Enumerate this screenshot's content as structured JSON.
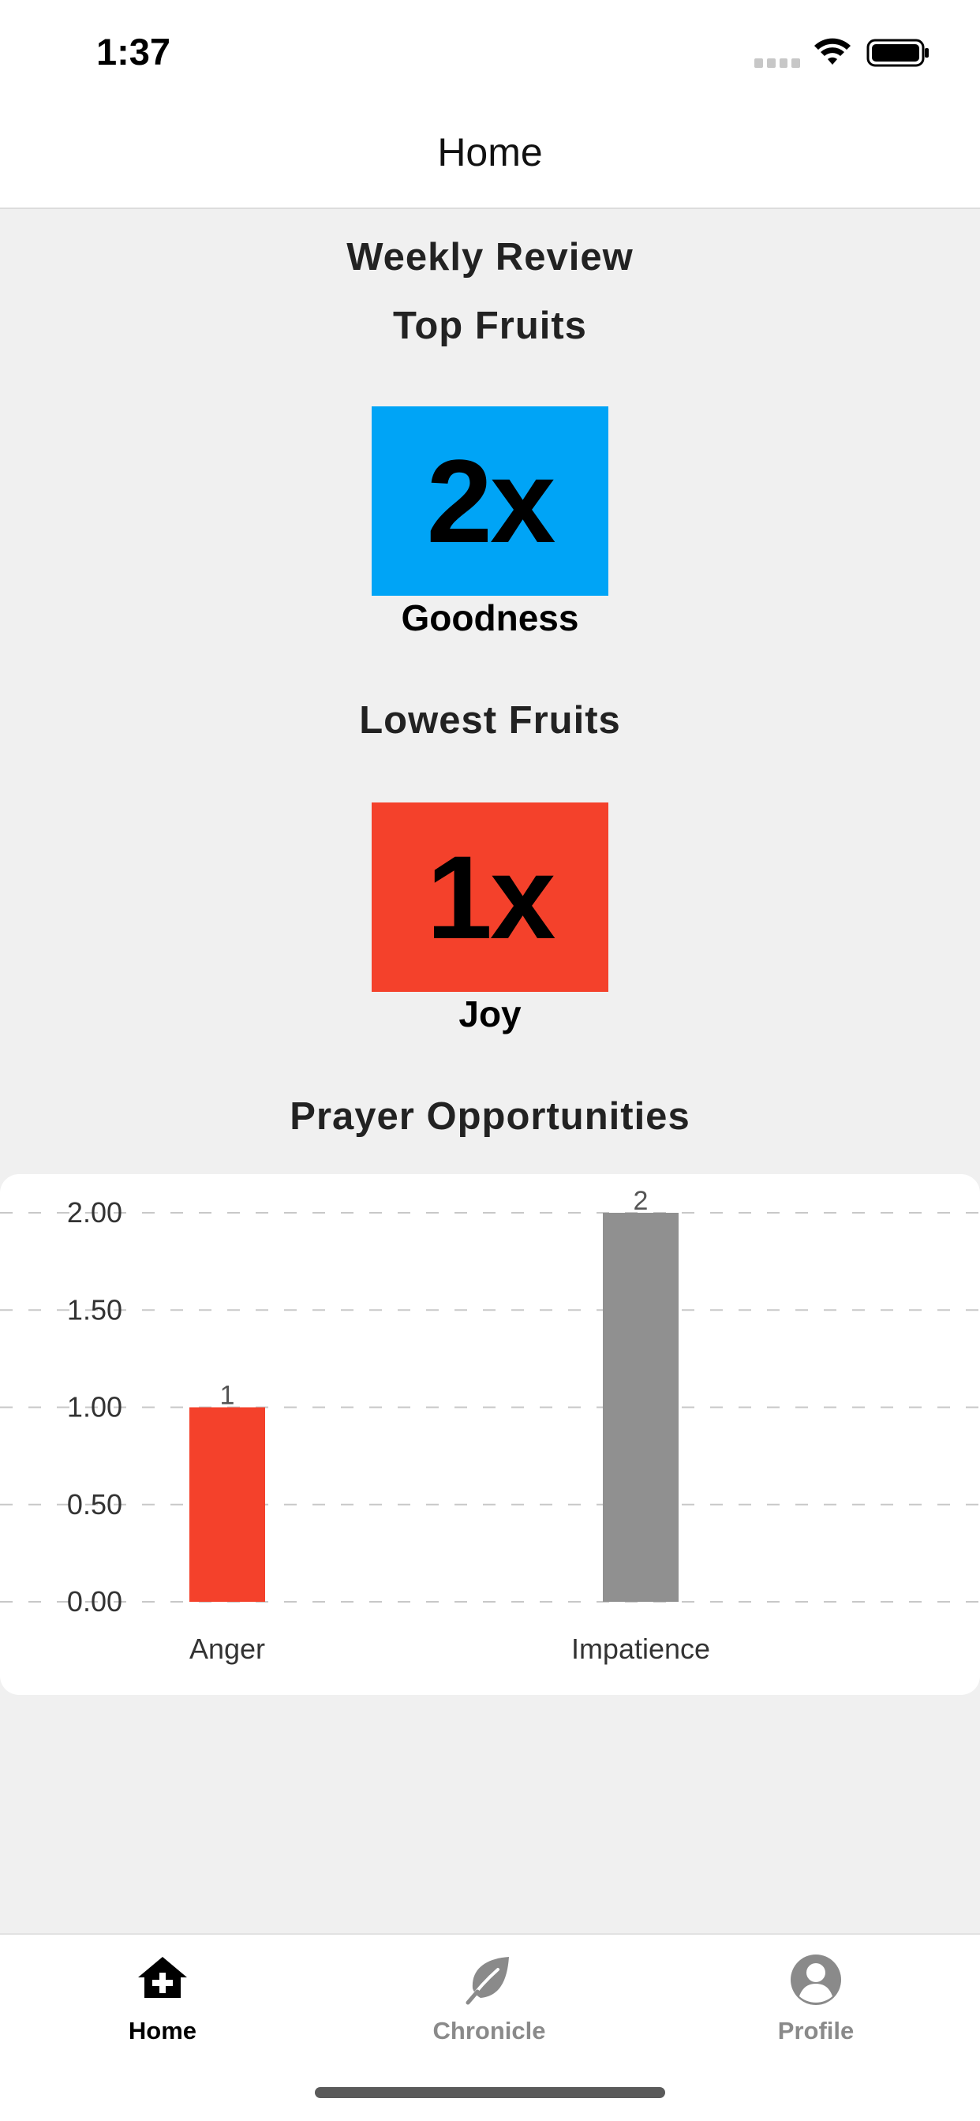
{
  "status_bar": {
    "time": "1:37"
  },
  "nav": {
    "title": "Home"
  },
  "weekly_review": {
    "title": "Weekly Review",
    "top_fruits": {
      "heading": "Top Fruits",
      "count": "2x",
      "name": "Goodness",
      "color": "#00a4f6"
    },
    "lowest_fruits": {
      "heading": "Lowest Fruits",
      "count": "1x",
      "name": "Joy",
      "color": "#f4412b"
    }
  },
  "prayer": {
    "heading": "Prayer Opportunities"
  },
  "chart_data": {
    "type": "bar",
    "categories": [
      "Anger",
      "Impatience"
    ],
    "values": [
      1,
      2
    ],
    "data_labels": [
      "1",
      "2"
    ],
    "colors": [
      "#f4412b",
      "#909090"
    ],
    "y_ticks": [
      "0.00",
      "0.50",
      "1.00",
      "1.50",
      "2.00"
    ],
    "ylim": [
      0,
      2
    ],
    "grid": true,
    "gridline_style": "dashed"
  },
  "tab_bar": {
    "items": [
      {
        "label": "Home",
        "icon": "home-plus-icon",
        "active": true
      },
      {
        "label": "Chronicle",
        "icon": "leaf-icon",
        "active": false
      },
      {
        "label": "Profile",
        "icon": "user-circle-icon",
        "active": false
      }
    ]
  }
}
